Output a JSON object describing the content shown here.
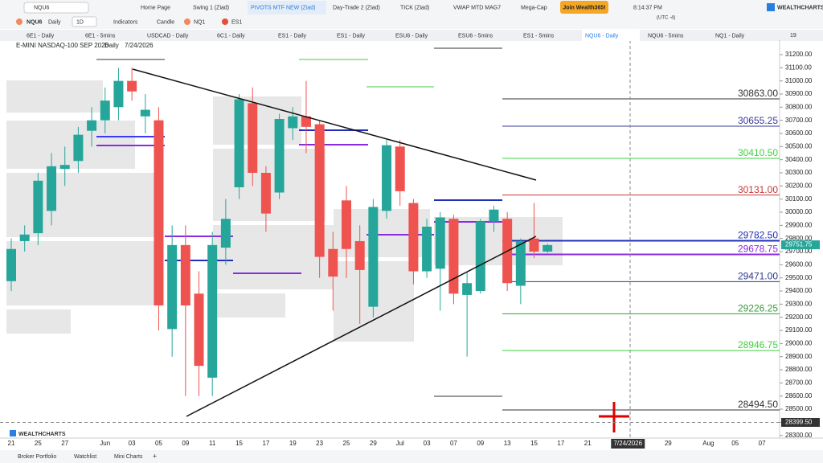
{
  "toolbar": {
    "search": "NQU6",
    "symbol": "NQU6",
    "interval_name": "Daily",
    "interval": "1D",
    "indicators": "Indicators",
    "chart_type": "Candle",
    "compare": [
      "NQ1",
      "ES1"
    ],
    "layouts": [
      "Home Page",
      "Swing 1 (Ziad)",
      "PIVOTS MTF NEW (Ziad)",
      "Day-Trade 2 (Ziad)",
      "TICK (Ziad)",
      "VWAP MTD MAG7",
      "Mega-Cap"
    ],
    "join": "Join Wealth365!",
    "time": "8:14:37 PM",
    "timezone": "(UTC -4)",
    "brand": "WEALTHCHARTS"
  },
  "chart_tabs": [
    "6E1 - Daily",
    "6E1 - 5mins",
    "USDCAD - Daily",
    "6C1 - Daily",
    "ES1 - Daily",
    "ES1 - Daily",
    "ESU6 - Daily",
    "ESU6 - 5mins",
    "ES1 - 5mins",
    "NQU6 - Daily",
    "NQU6 - 5mins",
    "NQ1 - Daily"
  ],
  "tab_count": "19",
  "footer": [
    "Broker Portfolio",
    "Watchlist",
    "Mini Charts"
  ],
  "chart_data": {
    "type": "candlestick",
    "title": "E-MINI NASDAQ-100 SEP 2026",
    "interval": "Daily",
    "date": "7/24/2026",
    "categories": [
      "21",
      null,
      "25",
      null,
      "27",
      null,
      null,
      "Jun",
      null,
      "03",
      null,
      "05",
      null,
      "09",
      null,
      "11",
      null,
      "15",
      null,
      "17",
      null,
      "19",
      null,
      "23",
      null,
      "25",
      null,
      "29",
      null,
      "Jul",
      null,
      "03",
      null,
      "07",
      null,
      "09",
      null,
      "13",
      null,
      "15",
      null,
      "17",
      null,
      "21",
      null,
      null,
      "7/24/2026",
      null,
      null,
      "29",
      null,
      null,
      "Aug",
      null,
      "05",
      null,
      "07"
    ],
    "open": [
      29475,
      29780,
      29840,
      30010,
      30330,
      30390,
      30620,
      30700,
      30800,
      31000,
      30730,
      30700,
      29110,
      29750,
      29380,
      28740,
      29730,
      30190,
      30830,
      30300,
      30150,
      30640,
      30730,
      30670,
      29720,
      30090,
      29780,
      29280,
      30010,
      30500,
      30070,
      29550,
      29570,
      29950,
      29370,
      29400,
      29930,
      29950,
      29440,
      29800,
      29700,
      null,
      null,
      null,
      null,
      null,
      null,
      null,
      null,
      null,
      null,
      null,
      null,
      null,
      null,
      null,
      null
    ],
    "high": [
      29800,
      29900,
      30300,
      30450,
      30500,
      30650,
      30800,
      30950,
      31100,
      31100,
      30900,
      30800,
      29900,
      29900,
      29550,
      29850,
      30100,
      30900,
      30950,
      30350,
      30750,
      30800,
      31000,
      30700,
      29850,
      30200,
      29900,
      30100,
      30550,
      30550,
      30100,
      29950,
      30000,
      29980,
      29550,
      29950,
      30050,
      30000,
      29800,
      30070,
      29760,
      null,
      null,
      null,
      null,
      null,
      null,
      null,
      null,
      null,
      null,
      null,
      null,
      null,
      null,
      null,
      null
    ],
    "low": [
      29400,
      29700,
      29750,
      29900,
      30200,
      30300,
      30500,
      30600,
      30700,
      30850,
      30600,
      29100,
      28900,
      28600,
      28600,
      28600,
      29600,
      30100,
      30200,
      29850,
      30100,
      30550,
      30450,
      29500,
      29250,
      29500,
      29150,
      29200,
      29950,
      30050,
      29450,
      29500,
      29250,
      29300,
      28900,
      29380,
      29850,
      29400,
      29300,
      29650,
      29690,
      null,
      null,
      null,
      null,
      null,
      null,
      null,
      null,
      null,
      null,
      null,
      null,
      null,
      null,
      null,
      null
    ],
    "close": [
      29720,
      29830,
      30240,
      30350,
      30360,
      30590,
      30700,
      30850,
      31000,
      30920,
      30780,
      29290,
      29750,
      29290,
      28830,
      29750,
      29950,
      30860,
      30300,
      29990,
      30710,
      30730,
      30650,
      29660,
      29510,
      29720,
      29560,
      30040,
      30510,
      30160,
      29550,
      29890,
      29960,
      29380,
      29460,
      29930,
      30020,
      29460,
      29780,
      29700,
      29750,
      null,
      null,
      null,
      null,
      null,
      null,
      null,
      null,
      null,
      null,
      null,
      null,
      null,
      null,
      null,
      null
    ],
    "up_color": "#26a69a",
    "down_color": "#ef5350",
    "ylim": [
      28280,
      31310
    ],
    "yticks": [
      {
        "value": 28300,
        "label": "28300.00"
      },
      {
        "value": 28400,
        "label": "28400.00"
      },
      {
        "value": 28500,
        "label": "28500.00"
      },
      {
        "value": 28600,
        "label": "28600.00"
      },
      {
        "value": 28700,
        "label": "28700.00"
      },
      {
        "value": 28800,
        "label": "28800.00"
      },
      {
        "value": 28900,
        "label": "28900.00"
      },
      {
        "value": 29000,
        "label": "29000.00"
      },
      {
        "value": 29100,
        "label": "29100.00"
      },
      {
        "value": 29200,
        "label": "29200.00"
      },
      {
        "value": 29300,
        "label": "29300.00"
      },
      {
        "value": 29400,
        "label": "29400.00"
      },
      {
        "value": 29500,
        "label": "29500.00"
      },
      {
        "value": 29600,
        "label": "29600.00"
      },
      {
        "value": 29700,
        "label": "29700.00"
      },
      {
        "value": 29800,
        "label": "29800.00"
      },
      {
        "value": 29900,
        "label": "29900.00"
      },
      {
        "value": 30000,
        "label": "30000.00"
      },
      {
        "value": 30100,
        "label": "30100.00"
      },
      {
        "value": 30200,
        "label": "30200.00"
      },
      {
        "value": 30300,
        "label": "30300.00"
      },
      {
        "value": 30400,
        "label": "30400.00"
      },
      {
        "value": 30500,
        "label": "30500.00"
      },
      {
        "value": 30600,
        "label": "30600.00"
      },
      {
        "value": 30700,
        "label": "30700.00"
      },
      {
        "value": 30800,
        "label": "30800.00"
      },
      {
        "value": 30900,
        "label": "30900.00"
      },
      {
        "value": 31000,
        "label": "31000.00"
      },
      {
        "value": 31100,
        "label": "31100.00"
      },
      {
        "value": 31200,
        "label": "31200.00"
      }
    ],
    "levels": {
      "values": [
        30863,
        30655.25,
        30410.5,
        30131,
        29782.5,
        29678.75,
        29471,
        29226.25,
        28946.75,
        28494.5
      ],
      "value_labels": [
        "30863.00",
        "30655.25",
        "30410.50",
        "30131.00",
        "29782.50",
        "29678.75",
        "29471.00",
        "29226.25",
        "28946.75",
        "28494.50"
      ],
      "colors": [
        "#333333",
        "#3a3a9a",
        "#3fd13f",
        "#c83737",
        "#1f2fb8",
        "#8a2be2",
        "#2a3a8a",
        "#3a9a3a",
        "#3fd13f",
        "#333333"
      ]
    },
    "last_price": {
      "value": 29751.75,
      "label": "29751.75",
      "color": "#26a69a"
    },
    "crosshair_price": {
      "value": 28399.5,
      "label": "28399.50",
      "color": "#333333"
    }
  }
}
